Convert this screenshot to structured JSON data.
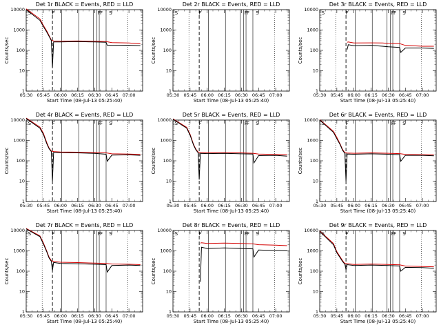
{
  "chart_data": {
    "type": "line",
    "shared": {
      "xlabel": "Start Time (08-Jul-13 05:25:40)",
      "ylabel": "Counts/sec",
      "x_tick_labels": [
        "05:30",
        "05:45",
        "06:00",
        "06:15",
        "06:30",
        "06:45",
        "07:00"
      ],
      "x_tick_minutes": [
        0,
        15,
        30,
        45,
        60,
        75,
        90
      ],
      "x_range_minutes": [
        0,
        102
      ],
      "y_scale": "log",
      "y_range": [
        1,
        10000
      ],
      "y_tick_labels": [
        "1",
        "10",
        "100",
        "1000",
        "10000"
      ],
      "y_tick_values": [
        1,
        10,
        100,
        1000,
        10000
      ],
      "series_colors": {
        "events": "#000000",
        "lld": "#d40000"
      },
      "flag_marks": [
        "S",
        "F",
        "F",
        "F",
        "S"
      ],
      "flag_mark_minutes": [
        1,
        22,
        62,
        64,
        72
      ],
      "solid_verticals_minutes": [
        31,
        46,
        59,
        62,
        64,
        70
      ],
      "dotted_verticals_minutes": [
        14,
        89
      ],
      "dashed_vertical_minutes": 23
    },
    "panels": [
      {
        "title": "Det 1r BLACK = Events, RED = LLD",
        "events": [
          [
            0,
            10000
          ],
          [
            12,
            3000
          ],
          [
            15,
            1500
          ],
          [
            18,
            800
          ],
          [
            20,
            500
          ],
          [
            22,
            300
          ],
          [
            23,
            15
          ],
          [
            24,
            260
          ],
          [
            30,
            260
          ],
          [
            45,
            270
          ],
          [
            60,
            260
          ],
          [
            70,
            250
          ],
          [
            71,
            180
          ],
          [
            75,
            175
          ],
          [
            90,
            180
          ],
          [
            100,
            170
          ]
        ],
        "lld": [
          [
            0,
            11000
          ],
          [
            12,
            3500
          ],
          [
            15,
            1700
          ],
          [
            18,
            900
          ],
          [
            20,
            550
          ],
          [
            22,
            320
          ],
          [
            24,
            290
          ],
          [
            30,
            285
          ],
          [
            45,
            290
          ],
          [
            60,
            280
          ],
          [
            70,
            270
          ],
          [
            75,
            240
          ],
          [
            90,
            230
          ],
          [
            100,
            210
          ]
        ]
      },
      {
        "title": "Det 2r BLACK = Events, RED = LLD",
        "events": [],
        "lld": []
      },
      {
        "title": "Det 3r BLACK = Events, RED = LLD",
        "events": [
          [
            24,
            110
          ],
          [
            25,
            190
          ],
          [
            30,
            170
          ],
          [
            45,
            175
          ],
          [
            55,
            160
          ],
          [
            60,
            150
          ],
          [
            70,
            140
          ],
          [
            71,
            80
          ],
          [
            75,
            130
          ],
          [
            90,
            130
          ],
          [
            100,
            125
          ]
        ],
        "lld": [
          [
            24,
            250
          ],
          [
            25,
            260
          ],
          [
            30,
            230
          ],
          [
            45,
            235
          ],
          [
            55,
            230
          ],
          [
            60,
            220
          ],
          [
            70,
            215
          ],
          [
            75,
            175
          ],
          [
            90,
            160
          ],
          [
            100,
            160
          ]
        ]
      },
      {
        "title": "Det 4r BLACK = Events, RED = LLD",
        "events": [
          [
            0,
            12000
          ],
          [
            12,
            4000
          ],
          [
            15,
            2000
          ],
          [
            18,
            700
          ],
          [
            20,
            400
          ],
          [
            22,
            280
          ],
          [
            23,
            10
          ],
          [
            24,
            260
          ],
          [
            30,
            250
          ],
          [
            45,
            245
          ],
          [
            60,
            230
          ],
          [
            70,
            210
          ],
          [
            71,
            95
          ],
          [
            75,
            190
          ],
          [
            90,
            195
          ],
          [
            100,
            185
          ]
        ],
        "lld": [
          [
            0,
            12500
          ],
          [
            12,
            4500
          ],
          [
            15,
            2300
          ],
          [
            18,
            800
          ],
          [
            20,
            430
          ],
          [
            22,
            300
          ],
          [
            24,
            285
          ],
          [
            30,
            270
          ],
          [
            45,
            265
          ],
          [
            60,
            255
          ],
          [
            70,
            245
          ],
          [
            75,
            220
          ],
          [
            90,
            215
          ],
          [
            100,
            205
          ]
        ]
      },
      {
        "title": "Det 5r BLACK = Events, RED = LLD",
        "events": [
          [
            0,
            11000
          ],
          [
            12,
            4000
          ],
          [
            15,
            1800
          ],
          [
            18,
            600
          ],
          [
            20,
            350
          ],
          [
            22,
            250
          ],
          [
            23,
            12
          ],
          [
            24,
            230
          ],
          [
            30,
            225
          ],
          [
            45,
            230
          ],
          [
            60,
            220
          ],
          [
            70,
            215
          ],
          [
            71,
            80
          ],
          [
            75,
            180
          ],
          [
            90,
            185
          ],
          [
            100,
            170
          ]
        ],
        "lld": [
          [
            0,
            11500
          ],
          [
            12,
            4400
          ],
          [
            15,
            2000
          ],
          [
            18,
            650
          ],
          [
            20,
            380
          ],
          [
            22,
            270
          ],
          [
            24,
            255
          ],
          [
            30,
            250
          ],
          [
            45,
            250
          ],
          [
            60,
            245
          ],
          [
            70,
            235
          ],
          [
            75,
            215
          ],
          [
            90,
            205
          ],
          [
            100,
            200
          ]
        ]
      },
      {
        "title": "Det 6r BLACK = Events, RED = LLD",
        "events": [
          [
            0,
            10000
          ],
          [
            12,
            2500
          ],
          [
            15,
            1200
          ],
          [
            18,
            600
          ],
          [
            20,
            330
          ],
          [
            22,
            230
          ],
          [
            23,
            10
          ],
          [
            24,
            215
          ],
          [
            30,
            210
          ],
          [
            45,
            220
          ],
          [
            60,
            210
          ],
          [
            70,
            200
          ],
          [
            71,
            95
          ],
          [
            75,
            185
          ],
          [
            90,
            185
          ],
          [
            100,
            175
          ]
        ],
        "lld": [
          [
            0,
            10500
          ],
          [
            12,
            2800
          ],
          [
            15,
            1400
          ],
          [
            18,
            650
          ],
          [
            20,
            360
          ],
          [
            22,
            250
          ],
          [
            24,
            240
          ],
          [
            30,
            235
          ],
          [
            45,
            245
          ],
          [
            60,
            235
          ],
          [
            70,
            225
          ],
          [
            75,
            205
          ],
          [
            90,
            200
          ],
          [
            100,
            195
          ]
        ]
      },
      {
        "title": "Det 7r BLACK = Events, RED = LLD",
        "events": [
          [
            0,
            12000
          ],
          [
            12,
            5000
          ],
          [
            15,
            2200
          ],
          [
            18,
            900
          ],
          [
            20,
            450
          ],
          [
            22,
            300
          ],
          [
            23,
            110
          ],
          [
            24,
            270
          ],
          [
            30,
            240
          ],
          [
            45,
            230
          ],
          [
            60,
            220
          ],
          [
            70,
            210
          ],
          [
            71,
            90
          ],
          [
            75,
            190
          ],
          [
            90,
            200
          ],
          [
            100,
            190
          ]
        ],
        "lld": [
          [
            0,
            12500
          ],
          [
            12,
            5500
          ],
          [
            15,
            2500
          ],
          [
            18,
            1000
          ],
          [
            20,
            500
          ],
          [
            22,
            330
          ],
          [
            24,
            300
          ],
          [
            30,
            275
          ],
          [
            45,
            265
          ],
          [
            60,
            250
          ],
          [
            70,
            240
          ],
          [
            75,
            225
          ],
          [
            90,
            220
          ],
          [
            100,
            210
          ]
        ]
      },
      {
        "title": "Det 8r BLACK = Events, RED = LLD",
        "events": [
          [
            24,
            30
          ],
          [
            25,
            1500
          ],
          [
            30,
            1300
          ],
          [
            45,
            1400
          ],
          [
            60,
            1300
          ],
          [
            70,
            1250
          ],
          [
            71,
            500
          ],
          [
            75,
            1100
          ],
          [
            90,
            1050
          ],
          [
            100,
            1000
          ]
        ],
        "lld": [
          [
            24,
            2400
          ],
          [
            25,
            2500
          ],
          [
            30,
            2300
          ],
          [
            45,
            2400
          ],
          [
            60,
            2300
          ],
          [
            70,
            2200
          ],
          [
            75,
            2000
          ],
          [
            90,
            1900
          ],
          [
            100,
            1800
          ]
        ]
      },
      {
        "title": "Det 9r BLACK = Events, RED = LLD",
        "events": [
          [
            0,
            9000
          ],
          [
            12,
            2000
          ],
          [
            15,
            800
          ],
          [
            18,
            450
          ],
          [
            20,
            300
          ],
          [
            22,
            220
          ],
          [
            23,
            120
          ],
          [
            24,
            210
          ],
          [
            30,
            190
          ],
          [
            45,
            200
          ],
          [
            60,
            190
          ],
          [
            70,
            180
          ],
          [
            71,
            100
          ],
          [
            75,
            155
          ],
          [
            90,
            150
          ],
          [
            100,
            140
          ]
        ],
        "lld": [
          [
            0,
            9500
          ],
          [
            12,
            2300
          ],
          [
            15,
            900
          ],
          [
            18,
            500
          ],
          [
            20,
            330
          ],
          [
            22,
            240
          ],
          [
            24,
            235
          ],
          [
            30,
            215
          ],
          [
            45,
            225
          ],
          [
            60,
            215
          ],
          [
            70,
            205
          ],
          [
            75,
            180
          ],
          [
            90,
            170
          ],
          [
            100,
            165
          ]
        ]
      }
    ]
  }
}
